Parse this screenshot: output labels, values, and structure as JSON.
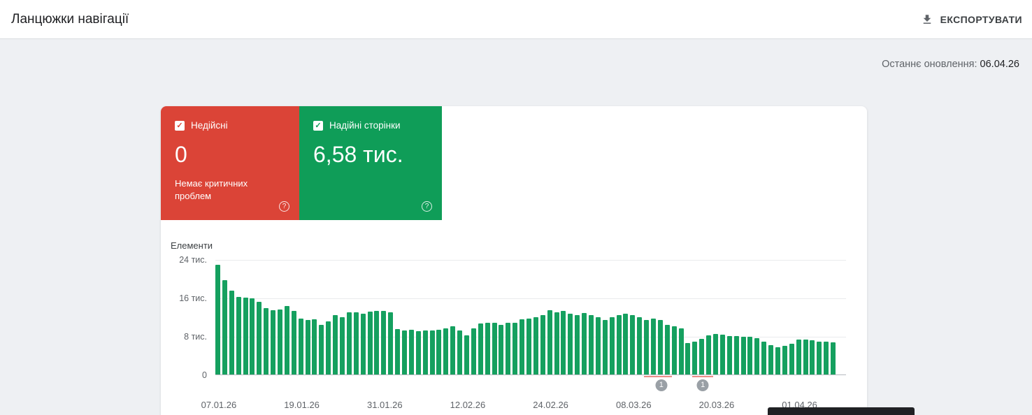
{
  "header": {
    "title": "Ланцюжки навігації",
    "export_label": "ЕКСПОРТУВАТИ"
  },
  "meta": {
    "last_update_label": "Останнє оновлення:",
    "last_update_value": "06.04.26"
  },
  "cards": {
    "invalid": {
      "label": "Недійсні",
      "value": "0",
      "subtext": "Немає критичних проблем",
      "color": "#db4437"
    },
    "valid": {
      "label": "Надійні сторінки",
      "value": "6,58 тис.",
      "color": "#0f9d58"
    }
  },
  "chart_data": {
    "type": "bar",
    "title": "Елементи",
    "ylabel": "Елементи",
    "unit": "тис.",
    "y_max": 24,
    "grid": true,
    "legend": "none",
    "y_ticks": [
      {
        "value": 24,
        "label": "24 тис."
      },
      {
        "value": 16,
        "label": "16 тис."
      },
      {
        "value": 8,
        "label": "8 тис."
      },
      {
        "value": 0,
        "label": "0"
      }
    ],
    "x_ticks": [
      {
        "index": 0,
        "label": "07.01.26"
      },
      {
        "index": 12,
        "label": "19.01.26"
      },
      {
        "index": 24,
        "label": "31.01.26"
      },
      {
        "index": 36,
        "label": "12.02.26"
      },
      {
        "index": 48,
        "label": "24.02.26"
      },
      {
        "index": 60,
        "label": "08.03.26"
      },
      {
        "index": 72,
        "label": "20.03.26"
      },
      {
        "index": 84,
        "label": "01.04.26"
      }
    ],
    "values": [
      22.8,
      19.6,
      17.4,
      16.2,
      16.0,
      15.8,
      15.2,
      13.8,
      13.4,
      13.6,
      14.2,
      13.3,
      11.6,
      11.3,
      11.5,
      10.4,
      11.0,
      12.4,
      11.9,
      12.9,
      13.0,
      12.6,
      13.1,
      13.3,
      13.2,
      12.9,
      9.4,
      9.2,
      9.3,
      9.0,
      9.2,
      9.1,
      9.3,
      9.6,
      10.0,
      9.2,
      8.2,
      9.6,
      10.6,
      10.8,
      10.7,
      10.4,
      10.8,
      10.8,
      11.5,
      11.7,
      12.0,
      12.3,
      13.4,
      12.9,
      13.2,
      12.7,
      12.4,
      12.8,
      12.4,
      12.0,
      11.4,
      12.0,
      12.4,
      12.7,
      12.3,
      11.9,
      11.3,
      11.7,
      11.4,
      10.4,
      10.0,
      9.6,
      6.6,
      6.9,
      7.4,
      8.2,
      8.5,
      8.3,
      8.0,
      8.0,
      7.9,
      7.8,
      7.6,
      6.9,
      6.1,
      5.7,
      5.9,
      6.4,
      7.3,
      7.3,
      7.1,
      6.8,
      6.9,
      6.7
    ],
    "bar_color": "#15a05f",
    "marker_color": "#9aa0a6",
    "markers": [
      {
        "index": 64,
        "label": "1"
      },
      {
        "index": 70,
        "label": "1"
      }
    ],
    "issue_color": "#d93025",
    "issue_segments": [
      {
        "start": 62,
        "end": 65
      },
      {
        "start": 69,
        "end": 71
      }
    ]
  }
}
